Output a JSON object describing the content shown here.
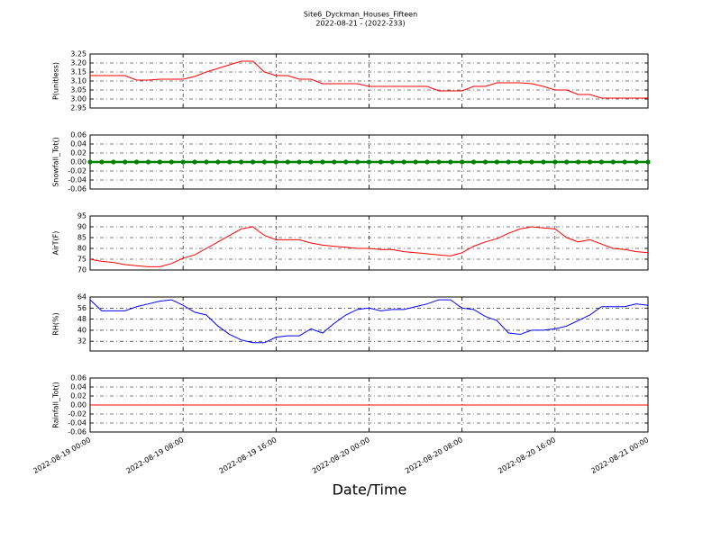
{
  "chart_data": {
    "type": "line",
    "title": "Site6_Dyckman_Houses_Fifteen",
    "subtitle": "2022-08-21 - (2022-233)",
    "xlabel": "Date/Time",
    "xlim": [
      "2022-08-19 00:00",
      "2022-08-21 00:00"
    ],
    "xticks": [
      "2022-08-19 00:00",
      "2022-08-19 08:00",
      "2022-08-19 16:00",
      "2022-08-20 00:00",
      "2022-08-20 08:00",
      "2022-08-20 16:00",
      "2022-08-21 00:00"
    ],
    "grid": true,
    "x": [
      "2022-08-19 00:00",
      "2022-08-19 01:00",
      "2022-08-19 02:00",
      "2022-08-19 03:00",
      "2022-08-19 04:00",
      "2022-08-19 05:00",
      "2022-08-19 06:00",
      "2022-08-19 07:00",
      "2022-08-19 08:00",
      "2022-08-19 09:00",
      "2022-08-19 10:00",
      "2022-08-19 11:00",
      "2022-08-19 12:00",
      "2022-08-19 13:00",
      "2022-08-19 14:00",
      "2022-08-19 15:00",
      "2022-08-19 16:00",
      "2022-08-19 17:00",
      "2022-08-19 18:00",
      "2022-08-19 19:00",
      "2022-08-19 20:00",
      "2022-08-19 21:00",
      "2022-08-19 22:00",
      "2022-08-19 23:00",
      "2022-08-20 00:00",
      "2022-08-20 01:00",
      "2022-08-20 02:00",
      "2022-08-20 03:00",
      "2022-08-20 04:00",
      "2022-08-20 05:00",
      "2022-08-20 06:00",
      "2022-08-20 07:00",
      "2022-08-20 08:00",
      "2022-08-20 09:00",
      "2022-08-20 10:00",
      "2022-08-20 11:00",
      "2022-08-20 12:00",
      "2022-08-20 13:00",
      "2022-08-20 14:00",
      "2022-08-20 15:00",
      "2022-08-20 16:00",
      "2022-08-20 17:00",
      "2022-08-20 18:00",
      "2022-08-20 19:00",
      "2022-08-20 20:00",
      "2022-08-20 21:00",
      "2022-08-20 22:00",
      "2022-08-20 23:00",
      "2022-08-21 00:00"
    ],
    "panels": [
      {
        "ylabel": "P(unitless)",
        "ylim": [
          2.95,
          3.25
        ],
        "yticks": [
          2.95,
          {
            "value": 3.0,
            "label": "3.00"
          },
          3.05,
          {
            "value": 3.1,
            "label": "3.10"
          },
          3.15,
          {
            "value": 3.2,
            "label": "3.20"
          },
          3.25
        ],
        "series": [
          {
            "color": "#ff0000",
            "values": [
              3.13,
              3.13,
              3.13,
              3.13,
              3.105,
              3.105,
              3.11,
              3.11,
              3.11,
              3.125,
              3.15,
              3.17,
              3.19,
              3.21,
              3.21,
              3.15,
              3.13,
              3.13,
              3.11,
              3.11,
              3.085,
              3.085,
              3.085,
              3.085,
              3.07,
              3.07,
              3.07,
              3.07,
              3.07,
              3.07,
              3.045,
              3.045,
              3.045,
              3.07,
              3.07,
              3.09,
              3.09,
              3.09,
              3.085,
              3.07,
              3.05,
              3.05,
              3.025,
              3.025,
              3.005,
              3.005,
              3.005,
              3.005,
              3.005
            ]
          }
        ]
      },
      {
        "ylabel": "Snowfall_Tot()",
        "ylim": [
          -0.06,
          0.06
        ],
        "markers": true,
        "yticks": [
          -0.06,
          -0.04,
          -0.02,
          {
            "value": 0,
            "label": "0.00"
          },
          0.02,
          0.04,
          0.06
        ],
        "series": [
          {
            "color": "#008000",
            "values": [
              0,
              0,
              0,
              0,
              0,
              0,
              0,
              0,
              0,
              0,
              0,
              0,
              0,
              0,
              0,
              0,
              0,
              0,
              0,
              0,
              0,
              0,
              0,
              0,
              0,
              0,
              0,
              0,
              0,
              0,
              0,
              0,
              0,
              0,
              0,
              0,
              0,
              0,
              0,
              0,
              0,
              0,
              0,
              0,
              0,
              0,
              0,
              0,
              0
            ]
          }
        ]
      },
      {
        "ylabel": "AirT(F)",
        "ylim": [
          70,
          95
        ],
        "yticks": [
          70,
          75,
          80,
          85,
          90,
          95
        ],
        "series": [
          {
            "color": "#ff0000",
            "values": [
              75,
              74,
              73.5,
              72.5,
              72,
              71.5,
              71.5,
              73,
              75.5,
              77,
              80,
              83,
              86,
              89,
              90,
              86,
              84,
              84,
              84,
              82.5,
              81.5,
              81,
              80.5,
              80,
              80,
              79.5,
              79.5,
              78.5,
              78,
              77.5,
              77,
              76.5,
              78,
              81,
              83,
              84.5,
              87,
              89,
              90,
              89.5,
              89,
              85,
              83,
              84,
              82,
              80,
              79.5,
              78.5,
              78
            ]
          }
        ]
      },
      {
        "ylabel": "RH(%)",
        "ylim": [
          25,
          64
        ],
        "yticks": [
          32,
          40,
          48,
          56,
          64
        ],
        "series": [
          {
            "color": "#0000ff",
            "values": [
              62,
              54,
              54,
              54,
              57,
              59,
              61,
              62,
              58,
              53,
              51,
              43,
              37,
              33,
              31,
              31,
              35,
              36,
              36,
              41,
              38,
              45,
              51,
              55,
              56,
              54,
              55,
              55,
              57,
              59,
              62,
              62,
              56,
              55,
              50,
              47,
              38,
              37,
              40,
              40,
              41,
              43,
              47,
              51,
              57,
              57,
              57,
              59,
              58
            ]
          }
        ]
      },
      {
        "ylabel": "Rainfall_Tot()",
        "ylim": [
          -0.06,
          0.06
        ],
        "yticks": [
          -0.06,
          -0.04,
          -0.02,
          {
            "value": 0,
            "label": "0.00"
          },
          0.02,
          0.04,
          0.06
        ],
        "series": [
          {
            "color": "#ff0000",
            "values": [
              0,
              0,
              0,
              0,
              0,
              0,
              0,
              0,
              0,
              0,
              0,
              0,
              0,
              0,
              0,
              0,
              0,
              0,
              0,
              0,
              0,
              0,
              0,
              0,
              0,
              0,
              0,
              0,
              0,
              0,
              0,
              0,
              0,
              0,
              0,
              0,
              0,
              0,
              0,
              0,
              0,
              0,
              0,
              0,
              0,
              0,
              0,
              0,
              0
            ]
          }
        ]
      }
    ]
  }
}
